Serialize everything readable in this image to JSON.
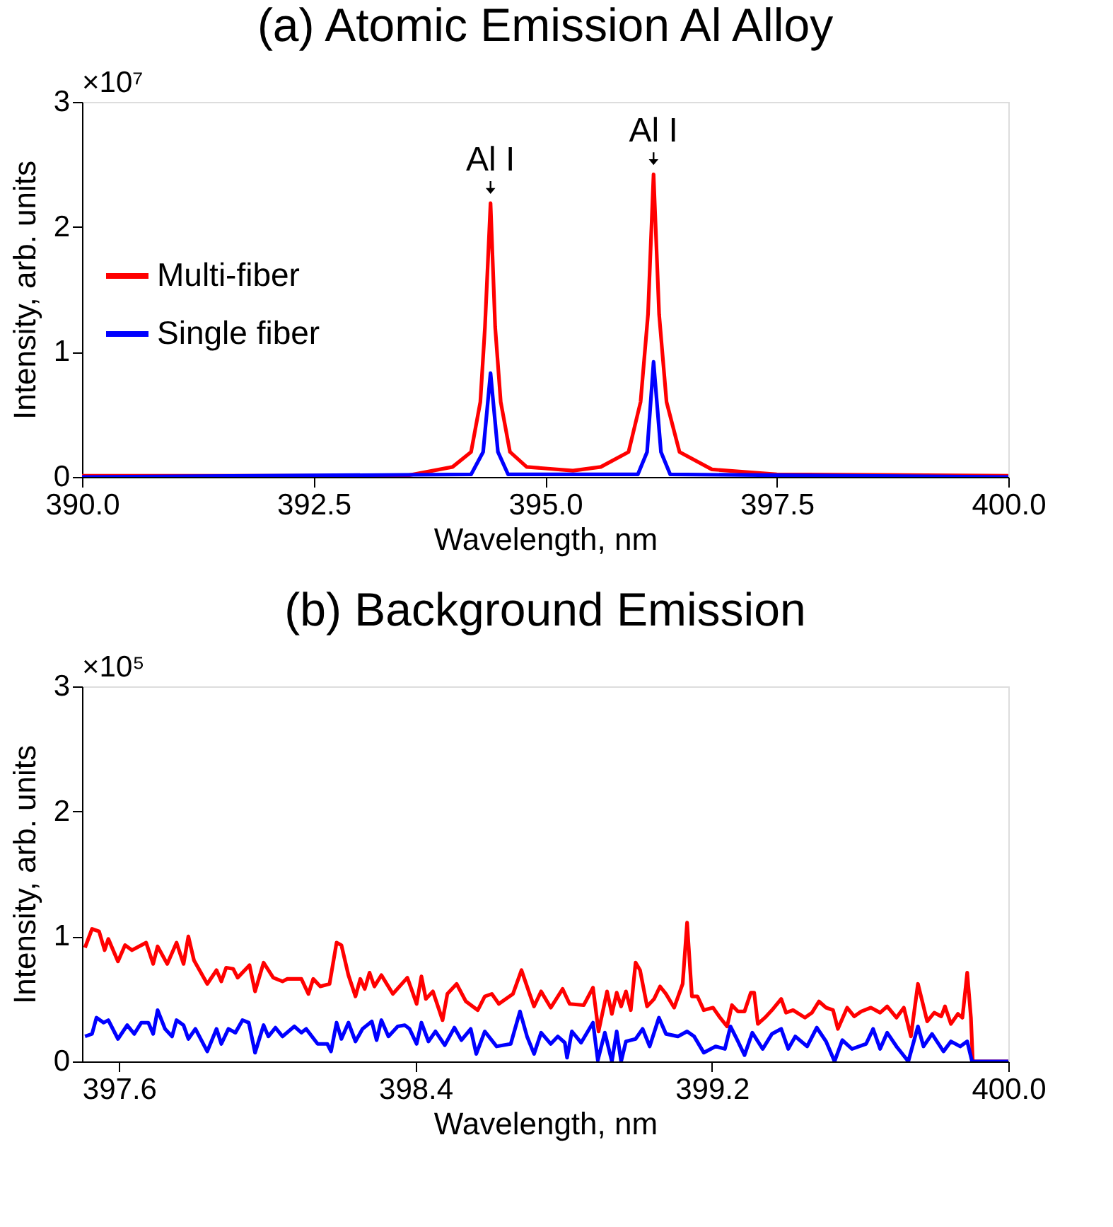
{
  "chart_data": [
    {
      "type": "line",
      "title": "(a) Atomic Emission Al Alloy",
      "xlabel": "Wavelength, nm",
      "ylabel": "Intensity, arb. units",
      "xlim": [
        390,
        400
      ],
      "xticks": [
        {
          "value": 390,
          "label": "390.0"
        },
        {
          "value": 392.5,
          "label": "392.5"
        },
        {
          "value": 395,
          "label": "395.0"
        },
        {
          "value": 397.5,
          "label": "397.5"
        },
        {
          "value": 400,
          "label": "400.0"
        }
      ],
      "ylim": [
        0,
        3
      ],
      "yticks": [
        0,
        1,
        2,
        3
      ],
      "legend": "left",
      "series": [
        {
          "name": "Multi-fiber",
          "color": "#ff0000",
          "x": [
            390,
            393.5,
            394.0,
            394.2,
            394.3,
            394.35,
            394.41,
            394.46,
            394.52,
            394.62,
            394.8,
            395.3,
            395.6,
            395.9,
            396.03,
            396.11,
            396.17,
            396.23,
            396.31,
            396.45,
            396.8,
            397.5,
            400
          ],
          "values": [
            0.01,
            0.01,
            0.08,
            0.2,
            0.6,
            1.2,
            2.19,
            1.2,
            0.6,
            0.2,
            0.08,
            0.05,
            0.08,
            0.2,
            0.6,
            1.3,
            2.42,
            1.3,
            0.6,
            0.2,
            0.06,
            0.02,
            0.01
          ]
        },
        {
          "name": "Single fiber",
          "color": "#0000ff",
          "x": [
            390,
            394.2,
            394.33,
            394.41,
            394.49,
            394.6,
            396.0,
            396.1,
            396.17,
            396.25,
            396.35,
            400
          ],
          "values": [
            0,
            0.02,
            0.2,
            0.83,
            0.2,
            0.02,
            0.02,
            0.2,
            0.92,
            0.2,
            0.02,
            0
          ]
        }
      ],
      "annotations": [
        "×10⁷",
        {
          "text": "Al I",
          "x": 394.41,
          "y": 2.19
        },
        {
          "text": "Al I",
          "x": 396.17,
          "y": 2.42
        }
      ]
    },
    {
      "type": "line",
      "title": "(b) Background Emission",
      "xlabel": "Wavelength, nm",
      "ylabel": "Intensity, arb. units",
      "xlim": [
        397.5,
        400
      ],
      "xticks": [
        397.6,
        398.4,
        399.2,
        {
          "value": 400,
          "label": "400.0"
        }
      ],
      "ylim": [
        0,
        3
      ],
      "yticks": [
        0,
        1,
        2,
        3
      ],
      "series": [
        {
          "color": "#ff0000",
          "x": [
            397.508,
            397.527,
            397.546,
            397.561,
            397.571,
            397.597,
            397.616,
            397.635,
            397.673,
            397.692,
            397.704,
            397.73,
            397.755,
            397.774,
            397.787,
            397.802,
            397.838,
            397.863,
            397.876,
            397.889,
            397.908,
            397.92,
            397.952,
            397.967,
            397.99,
            398.016,
            398.041,
            398.054,
            398.073,
            398.092,
            398.111,
            398.124,
            398.143,
            398.168,
            398.187,
            398.2,
            398.219,
            398.238,
            398.251,
            398.263,
            398.276,
            398.289,
            398.308,
            398.339,
            398.378,
            398.403,
            398.416,
            398.428,
            398.447,
            398.473,
            398.486,
            398.511,
            398.536,
            398.568,
            398.587,
            398.606,
            398.625,
            398.663,
            398.686,
            398.708,
            398.72,
            398.739,
            398.765,
            398.797,
            398.816,
            398.854,
            398.879,
            398.894,
            398.917,
            398.93,
            398.943,
            398.955,
            398.968,
            398.981,
            398.994,
            399.006,
            399.025,
            399.044,
            399.06,
            399.076,
            399.098,
            399.121,
            399.133,
            399.146,
            399.161,
            399.178,
            399.203,
            399.222,
            399.241,
            399.254,
            399.27,
            399.288,
            399.305,
            399.314,
            399.324,
            399.343,
            399.362,
            399.387,
            399.4,
            399.419,
            399.451,
            399.47,
            399.489,
            399.508,
            399.527,
            399.54,
            399.565,
            399.584,
            399.603,
            399.629,
            399.654,
            399.673,
            399.698,
            399.718,
            399.737,
            399.756,
            399.781,
            399.8,
            399.819,
            399.829,
            399.845,
            399.864,
            399.876,
            399.889,
            399.899,
            399.904,
            400.0
          ],
          "values": [
            0.91,
            1.06,
            1.04,
            0.89,
            0.98,
            0.8,
            0.93,
            0.89,
            0.95,
            0.78,
            0.92,
            0.78,
            0.95,
            0.78,
            1.0,
            0.81,
            0.62,
            0.73,
            0.64,
            0.75,
            0.74,
            0.67,
            0.77,
            0.56,
            0.79,
            0.67,
            0.64,
            0.66,
            0.66,
            0.66,
            0.54,
            0.66,
            0.6,
            0.62,
            0.95,
            0.93,
            0.69,
            0.52,
            0.66,
            0.58,
            0.71,
            0.6,
            0.69,
            0.54,
            0.67,
            0.46,
            0.68,
            0.5,
            0.56,
            0.33,
            0.54,
            0.62,
            0.48,
            0.41,
            0.52,
            0.54,
            0.46,
            0.54,
            0.73,
            0.54,
            0.44,
            0.56,
            0.43,
            0.58,
            0.46,
            0.45,
            0.59,
            0.24,
            0.56,
            0.38,
            0.55,
            0.44,
            0.56,
            0.41,
            0.79,
            0.73,
            0.44,
            0.5,
            0.6,
            0.54,
            0.43,
            0.62,
            1.11,
            0.52,
            0.52,
            0.41,
            0.43,
            0.35,
            0.28,
            0.45,
            0.4,
            0.4,
            0.55,
            0.55,
            0.3,
            0.35,
            0.41,
            0.5,
            0.39,
            0.41,
            0.35,
            0.39,
            0.48,
            0.43,
            0.41,
            0.26,
            0.43,
            0.36,
            0.4,
            0.43,
            0.39,
            0.44,
            0.35,
            0.43,
            0.2,
            0.62,
            0.32,
            0.39,
            0.36,
            0.44,
            0.3,
            0.38,
            0.35,
            0.71,
            0.35,
            0,
            0
          ]
        },
        {
          "color": "#0000ff",
          "x": [
            397.508,
            397.527,
            397.539,
            397.558,
            397.571,
            397.597,
            397.622,
            397.641,
            397.66,
            397.679,
            397.692,
            397.704,
            397.724,
            397.743,
            397.755,
            397.774,
            397.787,
            397.806,
            397.838,
            397.863,
            397.876,
            397.895,
            397.914,
            397.933,
            397.95,
            397.967,
            397.99,
            398.003,
            398.022,
            398.041,
            398.073,
            398.092,
            398.105,
            398.136,
            398.162,
            398.172,
            398.187,
            398.2,
            398.219,
            398.238,
            398.257,
            398.282,
            398.295,
            398.308,
            398.327,
            398.352,
            398.371,
            398.384,
            398.403,
            398.416,
            398.435,
            398.454,
            398.479,
            398.505,
            398.524,
            398.549,
            398.564,
            398.587,
            398.619,
            398.657,
            398.682,
            398.701,
            398.72,
            398.739,
            398.765,
            398.784,
            398.803,
            398.809,
            398.822,
            398.847,
            398.879,
            398.892,
            398.911,
            398.93,
            398.943,
            398.955,
            398.968,
            398.994,
            399.013,
            399.032,
            399.057,
            399.076,
            399.108,
            399.133,
            399.152,
            399.178,
            399.21,
            399.235,
            399.25,
            399.267,
            399.288,
            399.309,
            399.337,
            399.362,
            399.387,
            399.406,
            399.425,
            399.457,
            399.483,
            399.508,
            399.531,
            399.552,
            399.578,
            399.616,
            399.635,
            399.654,
            399.673,
            399.698,
            399.73,
            399.756,
            399.771,
            399.794,
            399.825,
            399.845,
            399.87,
            399.889,
            399.902,
            400.0
          ],
          "values": [
            0.2,
            0.22,
            0.35,
            0.31,
            0.33,
            0.18,
            0.29,
            0.22,
            0.31,
            0.31,
            0.22,
            0.41,
            0.26,
            0.2,
            0.33,
            0.29,
            0.18,
            0.26,
            0.08,
            0.26,
            0.14,
            0.26,
            0.23,
            0.33,
            0.31,
            0.07,
            0.29,
            0.2,
            0.27,
            0.2,
            0.28,
            0.23,
            0.26,
            0.14,
            0.14,
            0.08,
            0.31,
            0.18,
            0.31,
            0.16,
            0.26,
            0.32,
            0.17,
            0.33,
            0.2,
            0.28,
            0.29,
            0.26,
            0.14,
            0.31,
            0.16,
            0.24,
            0.13,
            0.27,
            0.17,
            0.26,
            0.06,
            0.24,
            0.12,
            0.14,
            0.4,
            0.2,
            0.06,
            0.23,
            0.14,
            0.2,
            0.15,
            0.03,
            0.24,
            0.15,
            0.31,
            0.01,
            0.23,
            0,
            0.24,
            0,
            0.16,
            0.18,
            0.26,
            0.12,
            0.35,
            0.22,
            0.2,
            0.24,
            0.2,
            0.07,
            0.12,
            0.1,
            0.28,
            0.18,
            0.05,
            0.23,
            0.1,
            0.22,
            0.26,
            0.1,
            0.2,
            0.12,
            0.27,
            0.16,
            0,
            0.17,
            0.1,
            0.14,
            0.26,
            0.1,
            0.23,
            0.12,
            0,
            0.28,
            0.12,
            0.22,
            0.08,
            0.16,
            0.12,
            0.16,
            0,
            0
          ]
        }
      ],
      "annotations": [
        "×10⁵"
      ]
    }
  ]
}
